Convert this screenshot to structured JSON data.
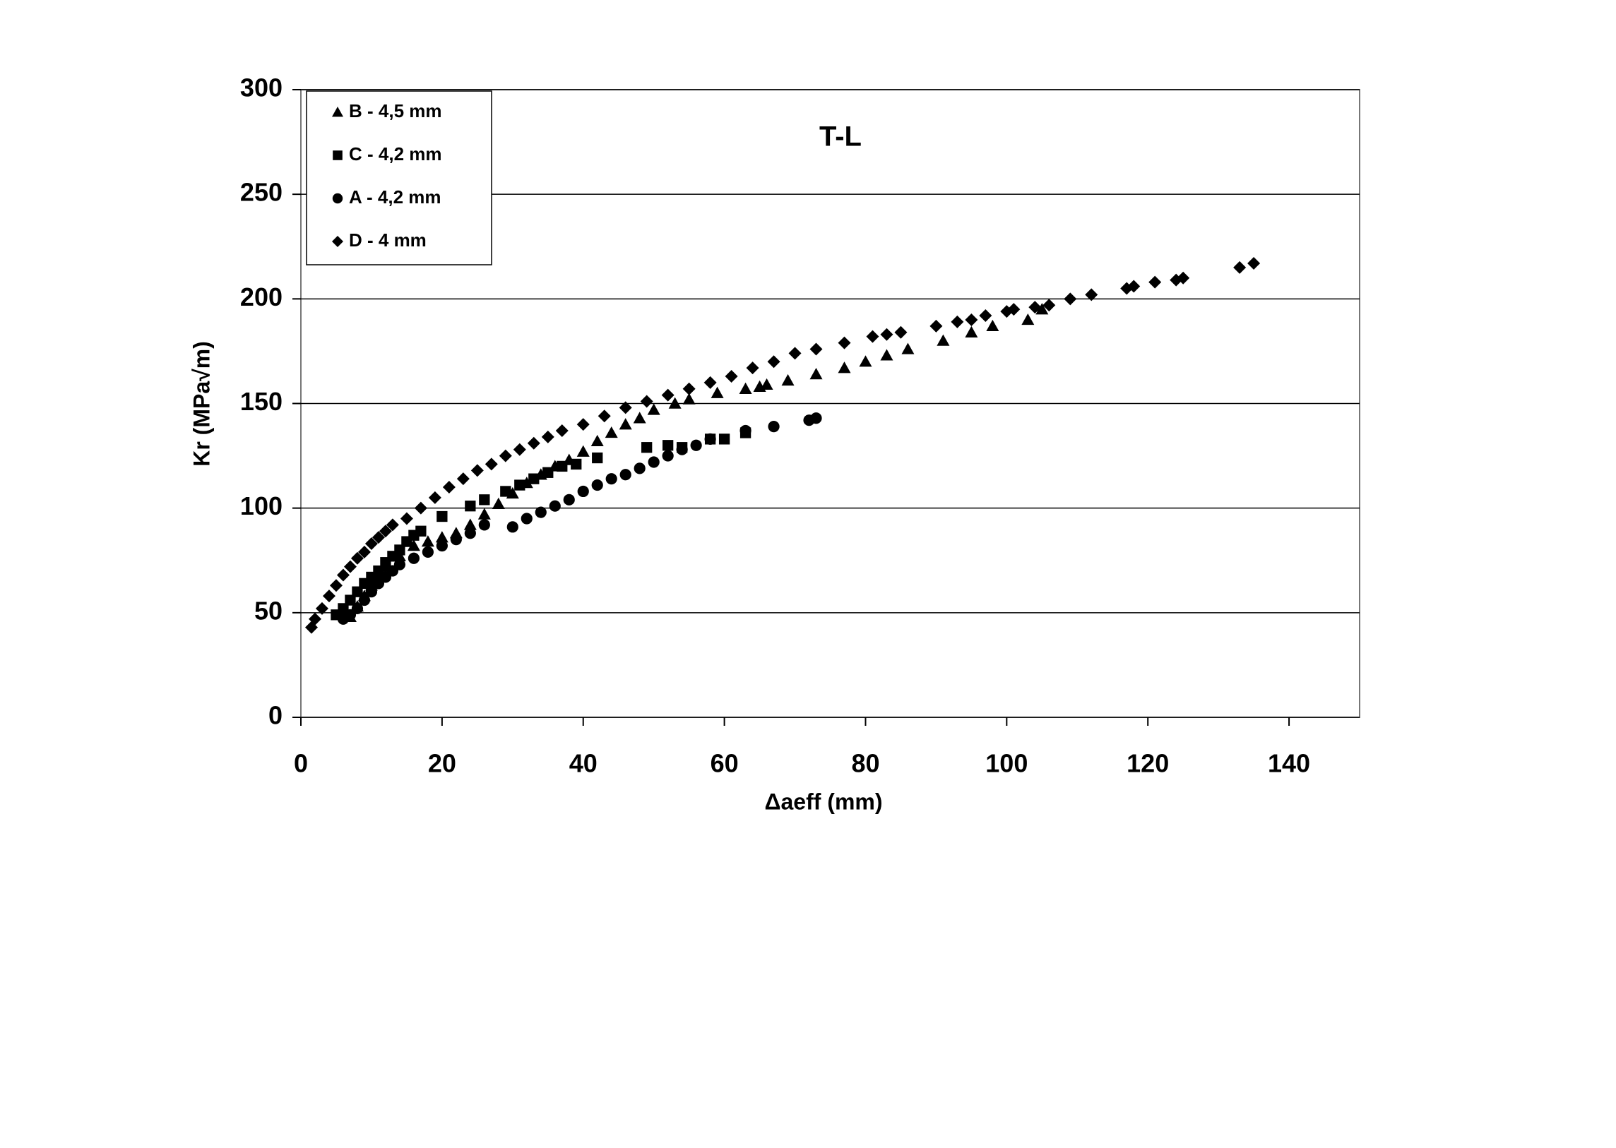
{
  "chart_data": {
    "type": "scatter",
    "title": "T-L",
    "xlabel": "Δaeff (mm)",
    "ylabel": "Kr (MPa√m)",
    "xlim": [
      0,
      150
    ],
    "ylim": [
      0,
      300
    ],
    "xticks": [
      0,
      20,
      40,
      60,
      80,
      100,
      120,
      140
    ],
    "yticks": [
      0,
      50,
      100,
      150,
      200,
      250,
      300
    ],
    "grid": true,
    "legend": "upper left",
    "series": [
      {
        "name": "B - 4,5 mm",
        "color": "#000000",
        "marker": "triangle",
        "x": [
          7,
          8,
          9,
          10,
          11,
          12,
          14,
          16,
          18,
          20,
          22,
          24,
          26,
          28,
          30,
          32,
          34,
          36,
          38,
          40,
          42,
          44,
          46,
          48,
          50,
          53,
          55,
          59,
          63,
          65,
          66,
          69,
          73,
          77,
          80,
          83,
          86,
          91,
          95,
          98,
          103,
          105
        ],
        "values": [
          48,
          53,
          58,
          63,
          68,
          72,
          77,
          82,
          84,
          86,
          88,
          92,
          97,
          102,
          107,
          112,
          116,
          120,
          123,
          127,
          132,
          136,
          140,
          143,
          147,
          150,
          152,
          155,
          157,
          158,
          159,
          161,
          164,
          167,
          170,
          173,
          176,
          180,
          184,
          187,
          190,
          195
        ]
      },
      {
        "name": "C - 4,2 mm",
        "color": "#000000",
        "marker": "square",
        "x": [
          5,
          6,
          7,
          8,
          9,
          10,
          11,
          12,
          13,
          14,
          15,
          16,
          17,
          20,
          24,
          26,
          29,
          31,
          33,
          35,
          37,
          39,
          42,
          49,
          52,
          54,
          58,
          60,
          63
        ],
        "values": [
          49,
          52,
          56,
          60,
          64,
          67,
          70,
          74,
          77,
          80,
          84,
          87,
          89,
          96,
          101,
          104,
          108,
          111,
          114,
          117,
          120,
          121,
          124,
          129,
          130,
          129,
          133,
          133,
          136
        ]
      },
      {
        "name": "A - 4,2 mm",
        "color": "#000000",
        "marker": "circle",
        "x": [
          6,
          7,
          8,
          9,
          10,
          11,
          12,
          13,
          14,
          16,
          18,
          20,
          22,
          24,
          26,
          30,
          32,
          34,
          36,
          38,
          40,
          42,
          44,
          46,
          48,
          50,
          52,
          54,
          56,
          58,
          63,
          67,
          72,
          73
        ],
        "values": [
          47,
          49,
          52,
          56,
          60,
          64,
          67,
          70,
          73,
          76,
          79,
          82,
          85,
          88,
          92,
          91,
          95,
          98,
          101,
          104,
          108,
          111,
          114,
          116,
          119,
          122,
          125,
          128,
          130,
          133,
          137,
          139,
          142,
          143
        ]
      },
      {
        "name": "D - 4 mm",
        "color": "#000000",
        "marker": "diamond",
        "x": [
          1.5,
          2,
          3,
          4,
          5,
          6,
          7,
          8,
          9,
          10,
          11,
          12,
          13,
          15,
          17,
          19,
          21,
          23,
          25,
          27,
          29,
          31,
          33,
          35,
          37,
          40,
          43,
          46,
          49,
          52,
          55,
          58,
          61,
          64,
          67,
          70,
          73,
          77,
          81,
          83,
          85,
          90,
          93,
          95,
          97,
          100,
          101,
          104,
          106,
          109,
          112,
          117,
          118,
          121,
          124,
          125,
          133,
          135
        ],
        "values": [
          43,
          47,
          52,
          58,
          63,
          68,
          72,
          76,
          79,
          83,
          86,
          89,
          92,
          95,
          100,
          105,
          110,
          114,
          118,
          121,
          125,
          128,
          131,
          134,
          137,
          140,
          144,
          148,
          151,
          154,
          157,
          160,
          163,
          167,
          170,
          174,
          176,
          179,
          182,
          183,
          184,
          187,
          189,
          190,
          192,
          194,
          195,
          196,
          197,
          200,
          202,
          205,
          206,
          208,
          209,
          210,
          215,
          217
        ]
      }
    ]
  }
}
